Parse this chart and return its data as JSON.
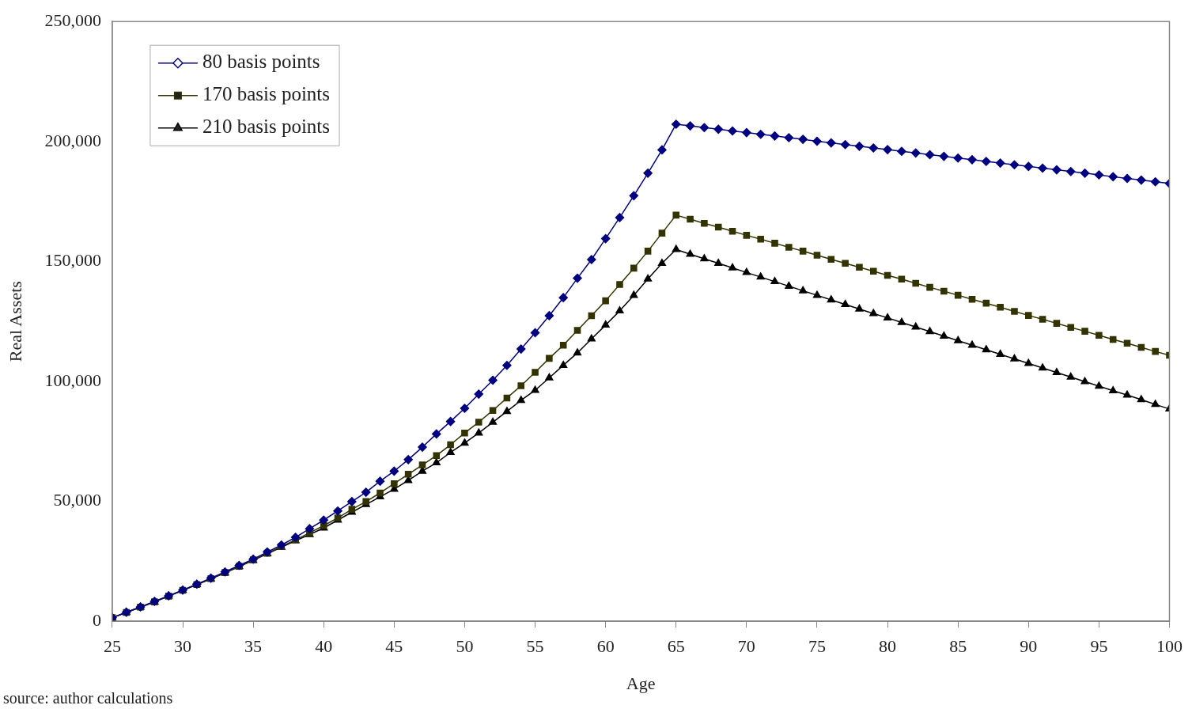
{
  "chart_data": {
    "type": "line",
    "xlabel": "Age",
    "ylabel": "Real Assets",
    "annotations": [
      "source: author calculations"
    ],
    "x": [
      25,
      26,
      27,
      28,
      29,
      30,
      31,
      32,
      33,
      34,
      35,
      36,
      37,
      38,
      39,
      40,
      41,
      42,
      43,
      44,
      45,
      46,
      47,
      48,
      49,
      50,
      51,
      52,
      53,
      54,
      55,
      56,
      57,
      58,
      59,
      60,
      61,
      62,
      63,
      64,
      65,
      66,
      67,
      68,
      69,
      70,
      71,
      72,
      73,
      74,
      75,
      76,
      77,
      78,
      79,
      80,
      81,
      82,
      83,
      84,
      85,
      86,
      87,
      88,
      89,
      90,
      91,
      92,
      93,
      94,
      95,
      96,
      97,
      98,
      99,
      100
    ],
    "series": [
      {
        "name": "80 basis points",
        "color": "#000080",
        "marker": "diamond",
        "values": [
          1500,
          3800,
          6000,
          8300,
          10600,
          13000,
          15500,
          18000,
          20600,
          23300,
          25900,
          28900,
          31800,
          35000,
          38600,
          42200,
          46000,
          49900,
          53800,
          58400,
          62600,
          67400,
          72600,
          78100,
          83300,
          88800,
          94700,
          100500,
          106700,
          113500,
          120300,
          127400,
          134900,
          143000,
          150800,
          159500,
          168300,
          177400,
          186800,
          196500,
          207200,
          206500,
          205800,
          205100,
          204400,
          203700,
          203000,
          202300,
          201600,
          200900,
          200100,
          199400,
          198700,
          198000,
          197300,
          196600,
          195900,
          195200,
          194500,
          193800,
          193100,
          192400,
          191700,
          191000,
          190300,
          189600,
          188900,
          188200,
          187500,
          186800,
          186100,
          185300,
          184600,
          183900,
          183200,
          182500
        ]
      },
      {
        "name": "170 basis points",
        "color": "#333300",
        "marker": "square",
        "values": [
          1500,
          3700,
          5900,
          8100,
          10500,
          12900,
          15300,
          17800,
          20300,
          22900,
          25600,
          28400,
          31200,
          34000,
          36900,
          39900,
          43100,
          46700,
          49900,
          53500,
          57400,
          61300,
          65200,
          69100,
          73600,
          78500,
          83000,
          87900,
          93100,
          98200,
          103800,
          109600,
          115100,
          121300,
          127400,
          133600,
          140400,
          147200,
          154300,
          161800,
          169300,
          167600,
          165900,
          164300,
          162600,
          160900,
          159300,
          157600,
          155900,
          154300,
          152600,
          150900,
          149200,
          147600,
          145900,
          144200,
          142600,
          140900,
          139200,
          137600,
          135900,
          134200,
          132600,
          130900,
          129200,
          127500,
          125900,
          124200,
          122500,
          120900,
          119200,
          117500,
          115900,
          114200,
          112500,
          110900
        ]
      },
      {
        "name": "210 basis points",
        "color": "#000000",
        "marker": "triangle",
        "values": [
          1500,
          3700,
          5900,
          8100,
          10500,
          12900,
          15300,
          17700,
          20200,
          22800,
          25400,
          28200,
          30900,
          33600,
          36200,
          38900,
          42200,
          45500,
          48700,
          51900,
          55100,
          58700,
          62600,
          66100,
          70400,
          74300,
          78500,
          83000,
          87500,
          92100,
          96300,
          101500,
          106700,
          111900,
          117700,
          123500,
          129400,
          135900,
          142700,
          149200,
          155000,
          153000,
          151100,
          149200,
          147300,
          145400,
          143500,
          141600,
          139700,
          137800,
          135900,
          134000,
          132100,
          130200,
          128300,
          126500,
          124600,
          122700,
          120800,
          118900,
          117000,
          115100,
          113200,
          111300,
          109400,
          107500,
          105600,
          103700,
          101800,
          99900,
          98000,
          96100,
          94300,
          92400,
          90400,
          88500
        ]
      }
    ],
    "xlim": [
      25,
      100
    ],
    "xticks": [
      25,
      30,
      35,
      40,
      45,
      50,
      55,
      60,
      65,
      70,
      75,
      80,
      85,
      90,
      95,
      100
    ],
    "ylim": [
      0,
      250000
    ],
    "yticks": [
      0,
      {
        "value": 50000,
        "label": "50,000"
      },
      {
        "value": 100000,
        "label": "100,000"
      },
      {
        "value": 150000,
        "label": "150,000"
      },
      {
        "value": 200000,
        "label": "200,000"
      },
      {
        "value": 250000,
        "label": "250,000"
      }
    ],
    "grid": false,
    "legend": "top left",
    "line_style": "solid"
  }
}
